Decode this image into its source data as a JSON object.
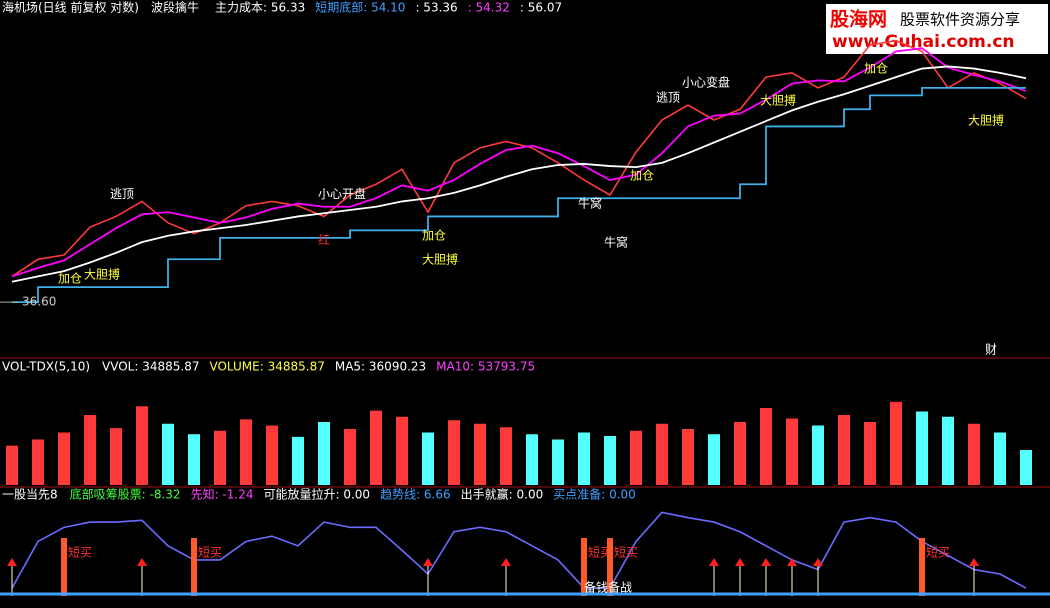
{
  "chart_data": [
    {
      "type": "line",
      "title": "海机场(日线 前复权 对数)",
      "indicator": "波段擒牛",
      "readouts": [
        {
          "text": "主力成本: 56.33",
          "color": "#ffffff"
        },
        {
          "text": "短期底部: 54.10",
          "color": "#3fa0ff"
        },
        {
          "text": ": 53.36",
          "color": "#ffffff"
        },
        {
          "text": ": 54.32",
          "color": "#ff40ff"
        },
        {
          "text": ": 56.07",
          "color": "#ffffff"
        }
      ],
      "ylim": [
        34,
        62
      ],
      "yticks": [
        {
          "value": 36.6,
          "label": "36.60"
        }
      ],
      "series": [
        {
          "color": "#ff3a3a",
          "values": [
            39,
            40.6,
            41,
            43.6,
            44.6,
            46,
            44,
            43,
            44,
            45.6,
            46,
            45.6,
            44.6,
            46.6,
            47.6,
            49,
            45,
            49.6,
            51,
            51.6,
            51,
            49.6,
            48,
            46.6,
            50.6,
            53.6,
            55,
            53.6,
            54.6,
            57.6,
            58,
            56.6,
            57.6,
            60.6,
            61,
            60,
            56.6,
            58,
            57,
            55.6
          ]
        },
        {
          "color": "#ff00ff",
          "values": [
            39,
            39.8,
            40.5,
            42,
            43.5,
            44.8,
            45,
            44.5,
            44,
            44.5,
            45.3,
            45.8,
            45.5,
            45.5,
            46.3,
            47.5,
            47,
            48,
            49.5,
            50.8,
            51.2,
            50.5,
            49.3,
            48,
            48.5,
            50.5,
            53,
            54,
            54.2,
            55.5,
            57,
            57.3,
            57.2,
            58.5,
            60,
            60.3,
            58.5,
            57.8,
            57.2,
            56.3
          ]
        },
        {
          "color": "#ffffff",
          "values": [
            38.5,
            39,
            39.5,
            40.3,
            41.2,
            42.2,
            42.8,
            43.2,
            43.5,
            43.8,
            44.2,
            44.6,
            44.9,
            45.2,
            45.5,
            46,
            46.3,
            46.8,
            47.5,
            48.3,
            49,
            49.4,
            49.5,
            49.3,
            49.2,
            49.6,
            50.5,
            51.5,
            52.5,
            53.5,
            54.5,
            55.3,
            56,
            56.8,
            57.6,
            58.4,
            58.6,
            58.4,
            58,
            57.5
          ]
        },
        {
          "color": "#3fb0e8",
          "step": true,
          "values": [
            36.6,
            38,
            38,
            38,
            38,
            38,
            40.6,
            40.6,
            42.6,
            42.6,
            42.6,
            42.6,
            42.6,
            43.3,
            43.3,
            43.3,
            44.6,
            44.6,
            44.6,
            44.6,
            44.6,
            46.3,
            46.3,
            46.3,
            46.3,
            46.3,
            46.3,
            46.3,
            47.6,
            53,
            53,
            53,
            54.6,
            55.9,
            55.9,
            56.6,
            56.6,
            56.6,
            56.6,
            56.6
          ]
        }
      ],
      "annotations": [
        {
          "x": 2,
          "label": "加仓",
          "position": "below",
          "color": "#ffff40"
        },
        {
          "x": 3,
          "label": "大胆搏",
          "position": "low",
          "color": "#ffff40"
        },
        {
          "x": 4,
          "label": "逃顶",
          "position": "above",
          "color": "#ffffff"
        },
        {
          "x": 12,
          "label": "小心开盘",
          "position": "above",
          "color": "#ffffff"
        },
        {
          "x": 12,
          "label": "红",
          "position": "below",
          "color": "#ff3030"
        },
        {
          "x": 16,
          "label": "加仓",
          "position": "below",
          "color": "#ffff40"
        },
        {
          "x": 16,
          "label": "大胆搏",
          "position": "low",
          "color": "#ffff40"
        },
        {
          "x": 22,
          "label": "牛窝",
          "position": "below",
          "color": "#ffffff"
        },
        {
          "x": 23,
          "label": "牛窝",
          "position": "low",
          "color": "#ffffff"
        },
        {
          "x": 24,
          "label": "加仓",
          "position": "below",
          "color": "#ffff40"
        },
        {
          "x": 25,
          "label": "逃顶",
          "position": "above",
          "color": "#ffffff"
        },
        {
          "x": 26,
          "label": "小心变盘",
          "position": "above",
          "color": "#ffffff"
        },
        {
          "x": 29,
          "label": "大胆搏",
          "position": "below",
          "color": "#ffff40"
        },
        {
          "x": 33,
          "label": "加仓",
          "position": "below",
          "color": "#ffff40"
        },
        {
          "x": 37,
          "label": "大胆搏",
          "position": "low",
          "color": "#ffff40"
        }
      ],
      "badge": "财"
    },
    {
      "type": "bar",
      "title": "VOL-TDX(5,10)",
      "readouts": [
        {
          "text": "VVOL: 34885.87",
          "color": "#ffffff"
        },
        {
          "text": "VOLUME: 34885.87",
          "color": "#ffff40"
        },
        {
          "text": "MA5: 36090.23",
          "color": "#ffffff"
        },
        {
          "text": "MA10: 53793.75",
          "color": "#ff40ff"
        }
      ],
      "ylim": [
        0,
        120000
      ],
      "up_color": "#ff3a3a",
      "down_color": "#54ffff",
      "values": [
        45000,
        52000,
        60000,
        80000,
        65000,
        90000,
        70000,
        58000,
        62000,
        75000,
        68000,
        55000,
        72000,
        64000,
        85000,
        78000,
        60000,
        74000,
        70000,
        66000,
        58000,
        52000,
        60000,
        56000,
        62000,
        70000,
        64000,
        58000,
        72000,
        88000,
        76000,
        68000,
        80000,
        72000,
        95000,
        84000,
        78000,
        70000,
        60000,
        40000
      ]
    },
    {
      "type": "line",
      "title": "一股当先8",
      "readouts": [
        {
          "text": "底部吸筹股票: -8.32",
          "color": "#40ff40"
        },
        {
          "text": "先知: -1.24",
          "color": "#ff40ff"
        },
        {
          "text": "可能放量拉升: 0.00",
          "color": "#ffffff"
        },
        {
          "text": "趋势线: 6.66",
          "color": "#3fa0ff"
        },
        {
          "text": "出手就赢: 0.00",
          "color": "#ffffff"
        },
        {
          "text": "买点准备: 0.00",
          "color": "#3fa0ff"
        }
      ],
      "ylim": [
        0,
        100
      ],
      "series": [
        {
          "color": "#6a6cff",
          "values": [
            9,
            62,
            78,
            84,
            84,
            86,
            57,
            41,
            41,
            62,
            68,
            57,
            84,
            78,
            78,
            52,
            25,
            73,
            78,
            73,
            57,
            41,
            9,
            9,
            62,
            95,
            89,
            84,
            73,
            57,
            41,
            30,
            84,
            89,
            84,
            62,
            46,
            30,
            25,
            9
          ]
        }
      ],
      "signals": [
        {
          "x": 2,
          "label": "短买"
        },
        {
          "x": 7,
          "label": "短买"
        },
        {
          "x": 22,
          "label": "短买"
        },
        {
          "x": 23,
          "label": "短买"
        },
        {
          "x": 35,
          "label": "短买"
        }
      ],
      "arrows": [
        0,
        5,
        16,
        19,
        27,
        28,
        29,
        30,
        31,
        37
      ],
      "footnote": {
        "x": 22,
        "label": "备钱备战"
      }
    }
  ],
  "watermark": {
    "brand": "股海网",
    "slogan": "股票软件资源分享",
    "url": "www.Guhai.com.cn"
  }
}
